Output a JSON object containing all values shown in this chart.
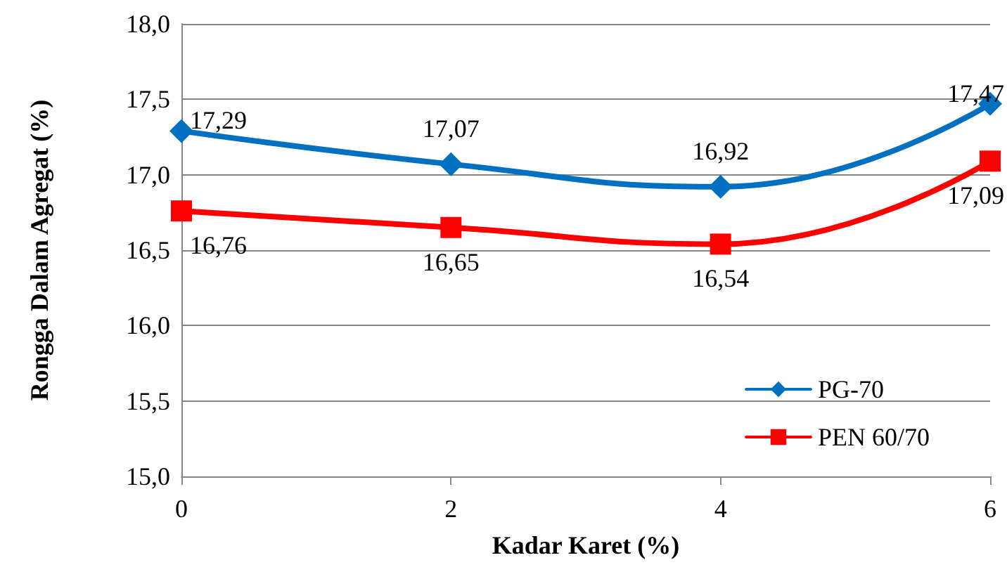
{
  "chart_data": {
    "type": "line",
    "xlabel": "Kadar Karet (%)",
    "ylabel": "Rongga Dalam Agregat (%)",
    "x": [
      0,
      2,
      4,
      6
    ],
    "series": [
      {
        "name": "PG-70",
        "color": "#0070c0",
        "marker": "diamond",
        "values": [
          17.29,
          17.07,
          16.92,
          17.47
        ],
        "value_labels": [
          "17,29",
          "17,07",
          "16,92",
          "17,47"
        ]
      },
      {
        "name": "PEN 60/70",
        "color": "#ff0000",
        "marker": "square",
        "values": [
          16.76,
          16.65,
          16.54,
          17.09
        ],
        "value_labels": [
          "16,76",
          "16,65",
          "16,54",
          "17,09"
        ]
      }
    ],
    "xlim": [
      0,
      6
    ],
    "xticks": [
      0,
      2,
      4,
      6
    ],
    "ylim": [
      15,
      18
    ],
    "yticks": [
      {
        "value": 15,
        "label": "15,0"
      },
      {
        "value": 15.5,
        "label": "15,5"
      },
      {
        "value": 16,
        "label": "16,0"
      },
      {
        "value": 16.5,
        "label": "16,5"
      },
      {
        "value": 17,
        "label": "17,0"
      },
      {
        "value": 17.5,
        "label": "17,5"
      },
      {
        "value": 18,
        "label": "18,0"
      }
    ],
    "grid": "y",
    "legend": "bottom right",
    "line_style": "solid"
  }
}
